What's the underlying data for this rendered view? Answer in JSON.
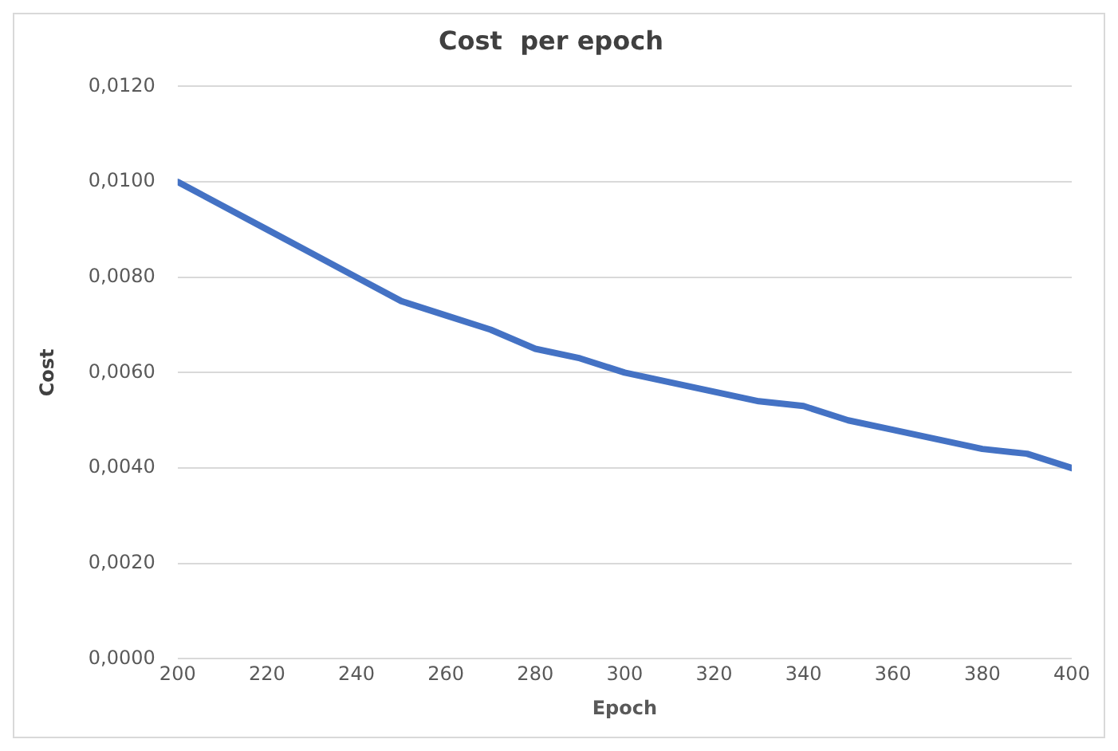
{
  "chart_data": {
    "type": "line",
    "title": "Cost  per epoch",
    "xlabel": "Epoch",
    "ylabel": "Cost",
    "x": [
      200,
      210,
      220,
      230,
      240,
      250,
      260,
      270,
      280,
      290,
      300,
      310,
      320,
      330,
      340,
      350,
      360,
      370,
      380,
      390,
      400
    ],
    "series": [
      {
        "color": "#4472c4",
        "values": [
          0.01,
          0.0095,
          0.009,
          0.0085,
          0.008,
          0.0075,
          0.0072,
          0.0069,
          0.0065,
          0.0063,
          0.006,
          0.0058,
          0.0056,
          0.0054,
          0.0053,
          0.005,
          0.0048,
          0.0046,
          0.0044,
          0.0043,
          0.004
        ]
      }
    ],
    "xlim": [
      200,
      400
    ],
    "xticks": [
      200,
      220,
      240,
      260,
      280,
      300,
      320,
      340,
      360,
      380,
      400
    ],
    "ylim": [
      0,
      0.012
    ],
    "yticks": [
      {
        "value": 0,
        "label": "0,0000"
      },
      {
        "value": 0.002,
        "label": "0,0020"
      },
      {
        "value": 0.004,
        "label": "0,0040"
      },
      {
        "value": 0.006,
        "label": "0,0060"
      },
      {
        "value": 0.008,
        "label": "0,0080"
      },
      {
        "value": 0.01,
        "label": "0,0100"
      },
      {
        "value": 0.012,
        "label": "0,0120"
      }
    ],
    "grid": "y",
    "legend": false,
    "marker": "none",
    "line_style": "solid"
  }
}
